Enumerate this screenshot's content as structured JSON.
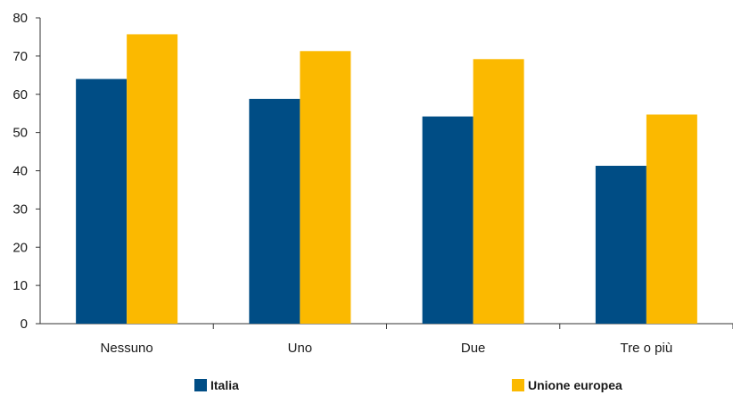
{
  "chart_data": {
    "type": "bar",
    "categories": [
      "Nessuno",
      "Uno",
      "Due",
      "Tre o più"
    ],
    "series": [
      {
        "name": "Italia",
        "values": [
          64,
          58.8,
          54.2,
          41.3
        ],
        "color": "#004d85"
      },
      {
        "name": "Unione europea",
        "values": [
          75.7,
          71.3,
          69.2,
          54.7
        ],
        "color": "#fbb900"
      }
    ],
    "ylim": [
      0,
      80
    ],
    "yticks": [
      0,
      10,
      20,
      30,
      40,
      50,
      60,
      70,
      80
    ],
    "grid": false,
    "legend_position": "bottom"
  }
}
